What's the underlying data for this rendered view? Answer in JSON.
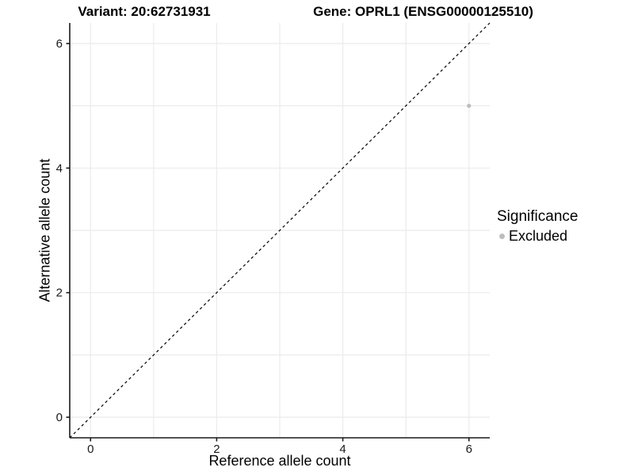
{
  "header": {
    "variant_title": "Variant: 20:62731931",
    "gene_title": "Gene: OPRL1 (ENSG00000125510)"
  },
  "chart_data": {
    "type": "scatter",
    "xlabel": "Reference allele count",
    "ylabel": "Alternative allele count",
    "xlim": [
      -0.33,
      6.33
    ],
    "ylim": [
      -0.33,
      6.33
    ],
    "x_ticks": [
      0,
      2,
      4,
      6
    ],
    "y_ticks": [
      0,
      2,
      4,
      6
    ],
    "gridlines_x": [
      0,
      1,
      2,
      3,
      4,
      5,
      6
    ],
    "gridlines_y": [
      0,
      1,
      2,
      3,
      4,
      5,
      6
    ],
    "grid": true,
    "series": [
      {
        "name": "Excluded",
        "color": "#bdbdbd",
        "points": [
          {
            "x": 6,
            "y": 5
          }
        ]
      }
    ],
    "identity_line": {
      "style": "dashed",
      "equation": "y = x"
    },
    "legend": {
      "position": "right",
      "title": "Significance",
      "entries": [
        {
          "label": "Excluded",
          "color": "#bdbdbd"
        }
      ]
    }
  },
  "colors": {
    "background": "#ffffff",
    "grid": "#ebebeb",
    "axis": "#1a1a1a",
    "identity_line": "#000000",
    "tick_text": "#1a1a1a"
  }
}
